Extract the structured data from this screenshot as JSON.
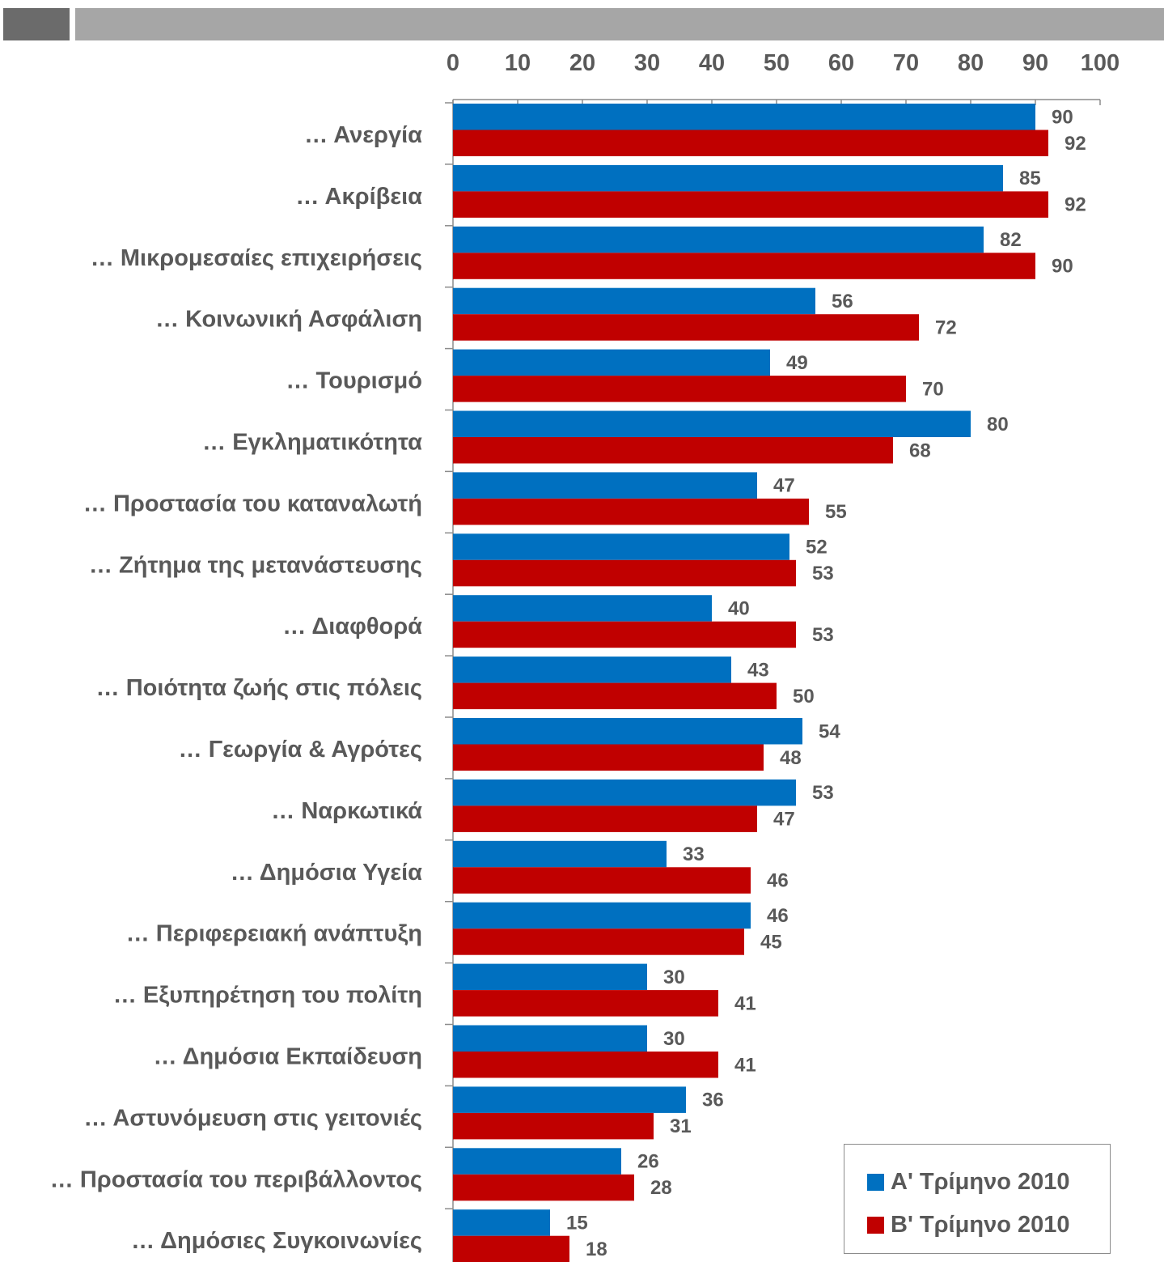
{
  "colors": {
    "series_a": "#0070c0",
    "series_b": "#c00000",
    "axis": "#8c8c8c",
    "text": "#595959",
    "header_dark": "#6b6b6b",
    "header_light": "#a6a6a6"
  },
  "chart_data": {
    "type": "bar",
    "orientation": "horizontal",
    "xlim": [
      0,
      100
    ],
    "x_ticks": [
      0,
      10,
      20,
      30,
      40,
      50,
      60,
      70,
      80,
      90,
      100
    ],
    "x_axis_position": "top",
    "grid": false,
    "legend_position": "bottom-right",
    "categories": [
      "… Ανεργία",
      "… Ακρίβεια",
      "… Μικρομεσαίες επιχειρήσεις",
      "… Κοινωνική Ασφάλιση",
      "… Τουρισμό",
      "… Εγκληματικότητα",
      "… Προστασία του καταναλωτή",
      "… Ζήτημα της μετανάστευσης",
      "… Διαφθορά",
      "… Ποιότητα ζωής στις πόλεις",
      "… Γεωργία & Αγρότες",
      "… Ναρκωτικά",
      "… Δημόσια Υγεία",
      "… Περιφερειακή ανάπτυξη",
      "… Εξυπηρέτηση του πολίτη",
      "… Δημόσια Εκπαίδευση",
      "… Αστυνόμευση στις γειτονιές",
      "… Προστασία του περιβάλλοντος",
      "… Δημόσιες Συγκοινωνίες"
    ],
    "series": [
      {
        "name": "Α' Τρίμηνο 2010",
        "color": "#0070c0",
        "values": [
          90,
          85,
          82,
          56,
          49,
          80,
          47,
          52,
          40,
          43,
          54,
          53,
          33,
          46,
          30,
          30,
          36,
          26,
          15
        ]
      },
      {
        "name": "Β' Τρίμηνο 2010",
        "color": "#c00000",
        "values": [
          92,
          92,
          90,
          72,
          70,
          68,
          55,
          53,
          53,
          50,
          48,
          47,
          46,
          45,
          41,
          41,
          31,
          28,
          18
        ]
      }
    ]
  }
}
